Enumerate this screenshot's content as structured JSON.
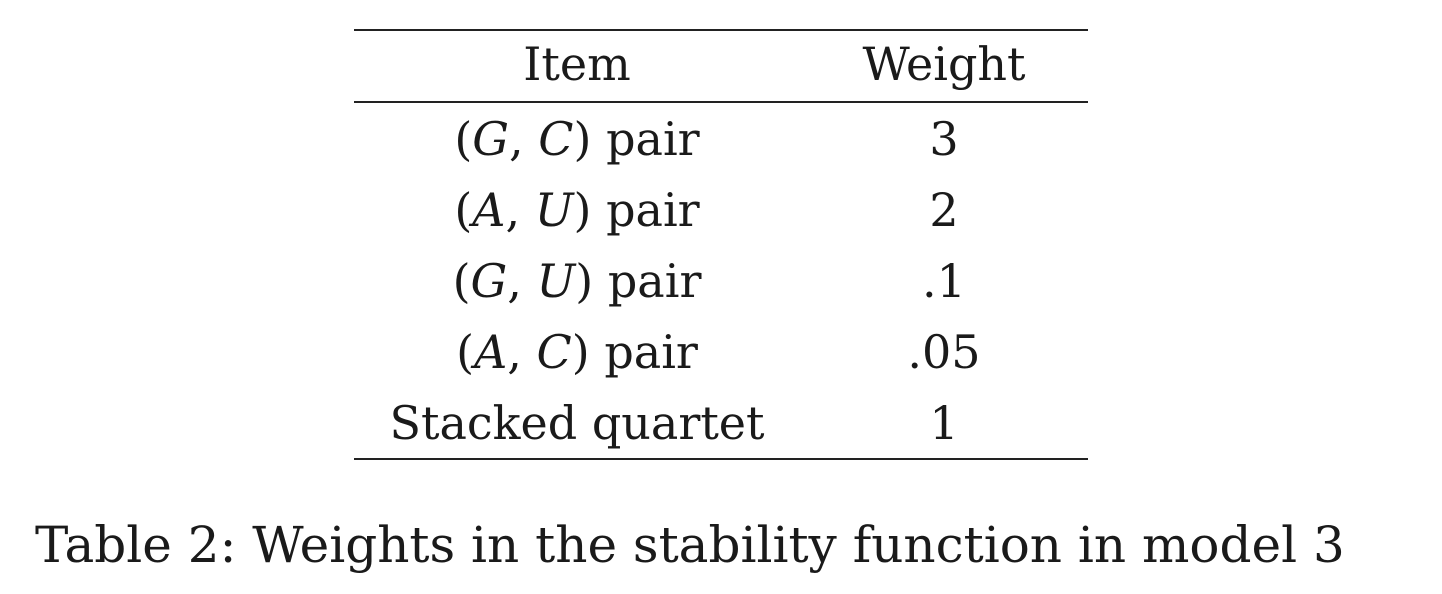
{
  "table": {
    "headers": [
      "Item",
      "Weight"
    ],
    "rows": [
      {
        "prefix": "(",
        "a": "G",
        "sep": ", ",
        "b": "C",
        "suffix": ") pair",
        "weight": "3"
      },
      {
        "prefix": "(",
        "a": "A",
        "sep": ", ",
        "b": "U",
        "suffix": ") pair",
        "weight": "2"
      },
      {
        "prefix": "(",
        "a": "G",
        "sep": ", ",
        "b": "U",
        "suffix": ") pair",
        "weight": ".1"
      },
      {
        "prefix": "(",
        "a": "A",
        "sep": ", ",
        "b": "C",
        "suffix": ") pair",
        "weight": ".05"
      },
      {
        "label": "Stacked quartet",
        "weight": "1"
      }
    ]
  },
  "caption": "Table 2:  Weights in the stability function in model 3"
}
